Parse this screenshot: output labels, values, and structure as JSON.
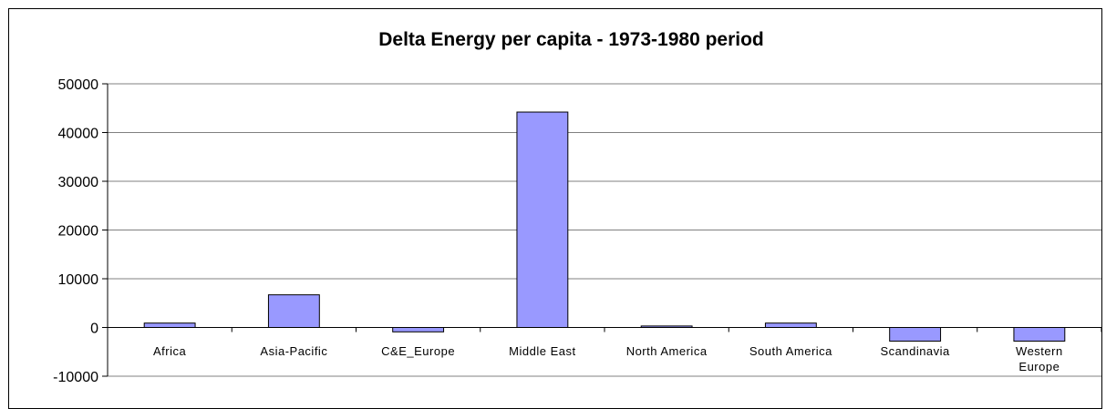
{
  "chart_data": {
    "type": "bar",
    "title": "Delta Energy per capita - 1973-1980 period",
    "xlabel": "",
    "ylabel": "",
    "categories": [
      "Africa",
      "Asia-Pacific",
      "C&E_Europe",
      "Middle East",
      "North America",
      "South America",
      "Scandinavia",
      "Western Europe"
    ],
    "values": [
      900,
      6700,
      -900,
      44200,
      300,
      900,
      -2800,
      -2800
    ],
    "ylim": [
      -10000,
      50000
    ],
    "yticks": [
      -10000,
      0,
      10000,
      20000,
      30000,
      40000,
      50000
    ],
    "grid": true,
    "legend": "none",
    "colors": {
      "bar_fill": "#9999ff",
      "bar_stroke": "#000000",
      "grid": "#808080",
      "axis": "#000000"
    }
  }
}
